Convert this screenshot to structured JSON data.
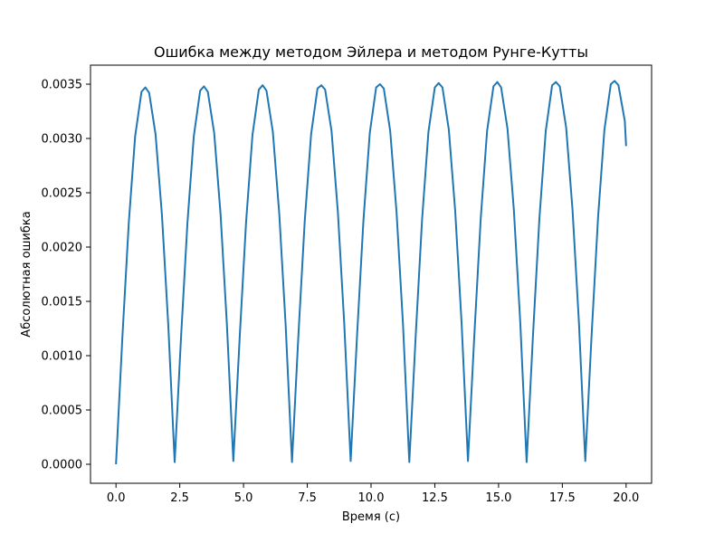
{
  "chart_data": {
    "type": "line",
    "title": "Ошибка между методом Эйлера и методом Рунге-Кутты",
    "xlabel": "Время (с)",
    "ylabel": "Абсолютная ошибка",
    "xlim": [
      -1.0,
      21.0
    ],
    "ylim": [
      -0.000175,
      0.003675
    ],
    "xticks": [
      "0.0",
      "2.5",
      "5.0",
      "7.5",
      "10.0",
      "12.5",
      "15.0",
      "17.5",
      "20.0"
    ],
    "yticks": [
      "0.0000",
      "0.0005",
      "0.0010",
      "0.0015",
      "0.0020",
      "0.0025",
      "0.0030",
      "0.0035"
    ],
    "grid": false,
    "color": "#1f77b4",
    "series": [
      {
        "x": [
          0.0,
          0.25,
          0.5,
          0.75,
          1.0,
          1.15,
          1.3,
          1.55,
          1.8,
          2.05,
          2.3,
          2.55,
          2.8,
          3.05,
          3.3,
          3.45,
          3.6,
          3.85,
          4.1,
          4.35,
          4.6,
          4.85,
          5.1,
          5.35,
          5.6,
          5.75,
          5.9,
          6.15,
          6.4,
          6.65,
          6.9,
          7.15,
          7.4,
          7.65,
          7.9,
          8.05,
          8.2,
          8.45,
          8.7,
          8.95,
          9.2,
          9.45,
          9.7,
          9.95,
          10.2,
          10.35,
          10.5,
          10.75,
          11.0,
          11.25,
          11.5,
          11.75,
          12.0,
          12.25,
          12.5,
          12.65,
          12.8,
          13.05,
          13.3,
          13.55,
          13.8,
          14.05,
          14.3,
          14.55,
          14.8,
          14.95,
          15.1,
          15.35,
          15.6,
          15.85,
          16.1,
          16.35,
          16.6,
          16.85,
          17.1,
          17.25,
          17.4,
          17.65,
          17.9,
          18.15,
          18.4,
          18.65,
          18.9,
          19.15,
          19.4,
          19.55,
          19.7,
          19.95,
          20.0
        ],
        "y": [
          0.0,
          0.00117,
          0.00222,
          0.00302,
          0.00343,
          0.00347,
          0.00342,
          0.00304,
          0.0023,
          0.00128,
          2e-05,
          0.00117,
          0.00222,
          0.00302,
          0.00344,
          0.00348,
          0.00343,
          0.00305,
          0.0023,
          0.00128,
          3e-05,
          0.00117,
          0.00223,
          0.00303,
          0.00345,
          0.00349,
          0.00344,
          0.00306,
          0.00231,
          0.00129,
          2e-05,
          0.00118,
          0.00224,
          0.00304,
          0.00346,
          0.00349,
          0.00345,
          0.00307,
          0.00232,
          0.00129,
          3e-05,
          0.00118,
          0.00224,
          0.00305,
          0.00347,
          0.0035,
          0.00346,
          0.00307,
          0.00232,
          0.0013,
          2e-05,
          0.00118,
          0.00225,
          0.00306,
          0.00347,
          0.00351,
          0.00347,
          0.00308,
          0.00233,
          0.0013,
          3e-05,
          0.00119,
          0.00226,
          0.00307,
          0.00348,
          0.00352,
          0.00347,
          0.00309,
          0.00234,
          0.00131,
          2e-05,
          0.00119,
          0.00226,
          0.00307,
          0.00349,
          0.00352,
          0.00348,
          0.0031,
          0.00234,
          0.00131,
          3e-05,
          0.0012,
          0.00227,
          0.00308,
          0.0035,
          0.00353,
          0.00349,
          0.00316,
          0.00293
        ]
      }
    ]
  }
}
